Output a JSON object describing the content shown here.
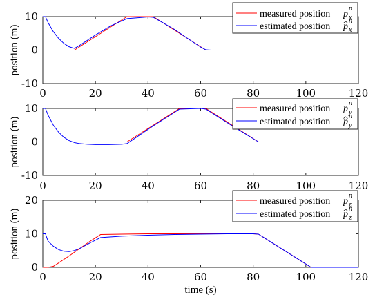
{
  "chart_data": [
    {
      "type": "line",
      "ylabel": "position (m)",
      "xlabel": "",
      "xlim": [
        0,
        120
      ],
      "ylim": [
        -10,
        10
      ],
      "xticks": [
        "0",
        "20",
        "40",
        "60",
        "80",
        "100",
        "120"
      ],
      "yticks": [
        "-10",
        "0",
        "10"
      ],
      "grid": false,
      "legend_position": "top-right",
      "series": [
        {
          "name": "measured position",
          "symbol": "p",
          "hat": false,
          "subscript": "x",
          "superscript": "n",
          "color": "#ff0000",
          "x": [
            0,
            12,
            32,
            42,
            62,
            120
          ],
          "y": [
            0,
            0,
            10,
            10,
            0,
            0
          ]
        },
        {
          "name": "estimated position",
          "symbol": "p",
          "hat": true,
          "subscript": "x",
          "superscript": "n",
          "color": "#0000ff",
          "x": [
            0,
            1,
            2,
            4,
            6,
            8,
            10,
            12,
            14,
            20,
            26,
            32,
            40,
            42,
            50,
            55,
            60,
            62,
            64,
            120
          ],
          "y": [
            10,
            10,
            8.2,
            5.5,
            3.5,
            2,
            1,
            0.5,
            1.4,
            4.5,
            7.3,
            9.4,
            9.9,
            9.8,
            6.2,
            3.5,
            0.9,
            0.1,
            0,
            0
          ]
        }
      ]
    },
    {
      "type": "line",
      "ylabel": "position (m)",
      "xlabel": "",
      "xlim": [
        0,
        120
      ],
      "ylim": [
        -10,
        10
      ],
      "xticks": [
        "0",
        "20",
        "40",
        "60",
        "80",
        "100",
        "120"
      ],
      "yticks": [
        "-10",
        "0",
        "10"
      ],
      "grid": false,
      "legend_position": "top-right",
      "series": [
        {
          "name": "measured position",
          "symbol": "p",
          "hat": false,
          "subscript": "y",
          "superscript": "n",
          "color": "#ff0000",
          "x": [
            0,
            32,
            52,
            62,
            82,
            120
          ],
          "y": [
            0,
            0,
            10,
            10,
            0,
            0
          ]
        },
        {
          "name": "estimated position",
          "symbol": "p",
          "hat": true,
          "subscript": "y",
          "superscript": "n",
          "color": "#0000ff",
          "x": [
            0,
            1,
            2,
            4,
            6,
            8,
            10,
            12,
            14,
            17,
            20,
            25,
            30,
            32,
            42,
            52,
            60,
            62,
            72,
            82,
            84,
            120
          ],
          "y": [
            10,
            10,
            8,
            5,
            2.9,
            1.4,
            0.4,
            -0.2,
            -0.5,
            -0.7,
            -0.8,
            -0.8,
            -0.7,
            -0.5,
            4.8,
            9.8,
            10,
            9.8,
            4.8,
            0,
            0,
            0
          ]
        }
      ]
    },
    {
      "type": "line",
      "ylabel": "position (m)",
      "xlabel": "time (s)",
      "xlim": [
        0,
        120
      ],
      "ylim": [
        0,
        20
      ],
      "xticks": [
        "0",
        "20",
        "40",
        "60",
        "80",
        "100",
        "120"
      ],
      "yticks": [
        "0",
        "10",
        "20"
      ],
      "grid": false,
      "legend_position": "top-right",
      "series": [
        {
          "name": "measured position",
          "symbol": "p",
          "hat": false,
          "subscript": "z",
          "superscript": "n",
          "color": "#ff0000",
          "x": [
            0,
            2,
            4,
            6,
            10,
            14,
            18,
            22,
            30,
            40,
            50,
            60,
            70,
            80,
            82,
            102,
            120
          ],
          "y": [
            0,
            0,
            0.3,
            1.3,
            3.4,
            5.6,
            7.8,
            9.8,
            9.9,
            10,
            10,
            10,
            10,
            10,
            9.9,
            0,
            0
          ]
        },
        {
          "name": "estimated position",
          "symbol": "p",
          "hat": true,
          "subscript": "z",
          "superscript": "n",
          "color": "#0000ff",
          "x": [
            0,
            1,
            2,
            4,
            6,
            8,
            10,
            12,
            14,
            18,
            22,
            30,
            40,
            50,
            60,
            70,
            80,
            82,
            102,
            120
          ],
          "y": [
            10,
            10,
            7.8,
            6.3,
            5.3,
            4.8,
            4.7,
            5,
            5.6,
            7.3,
            8.9,
            9.3,
            9.6,
            9.8,
            9.9,
            10,
            10,
            9.9,
            0,
            0
          ]
        }
      ]
    }
  ]
}
